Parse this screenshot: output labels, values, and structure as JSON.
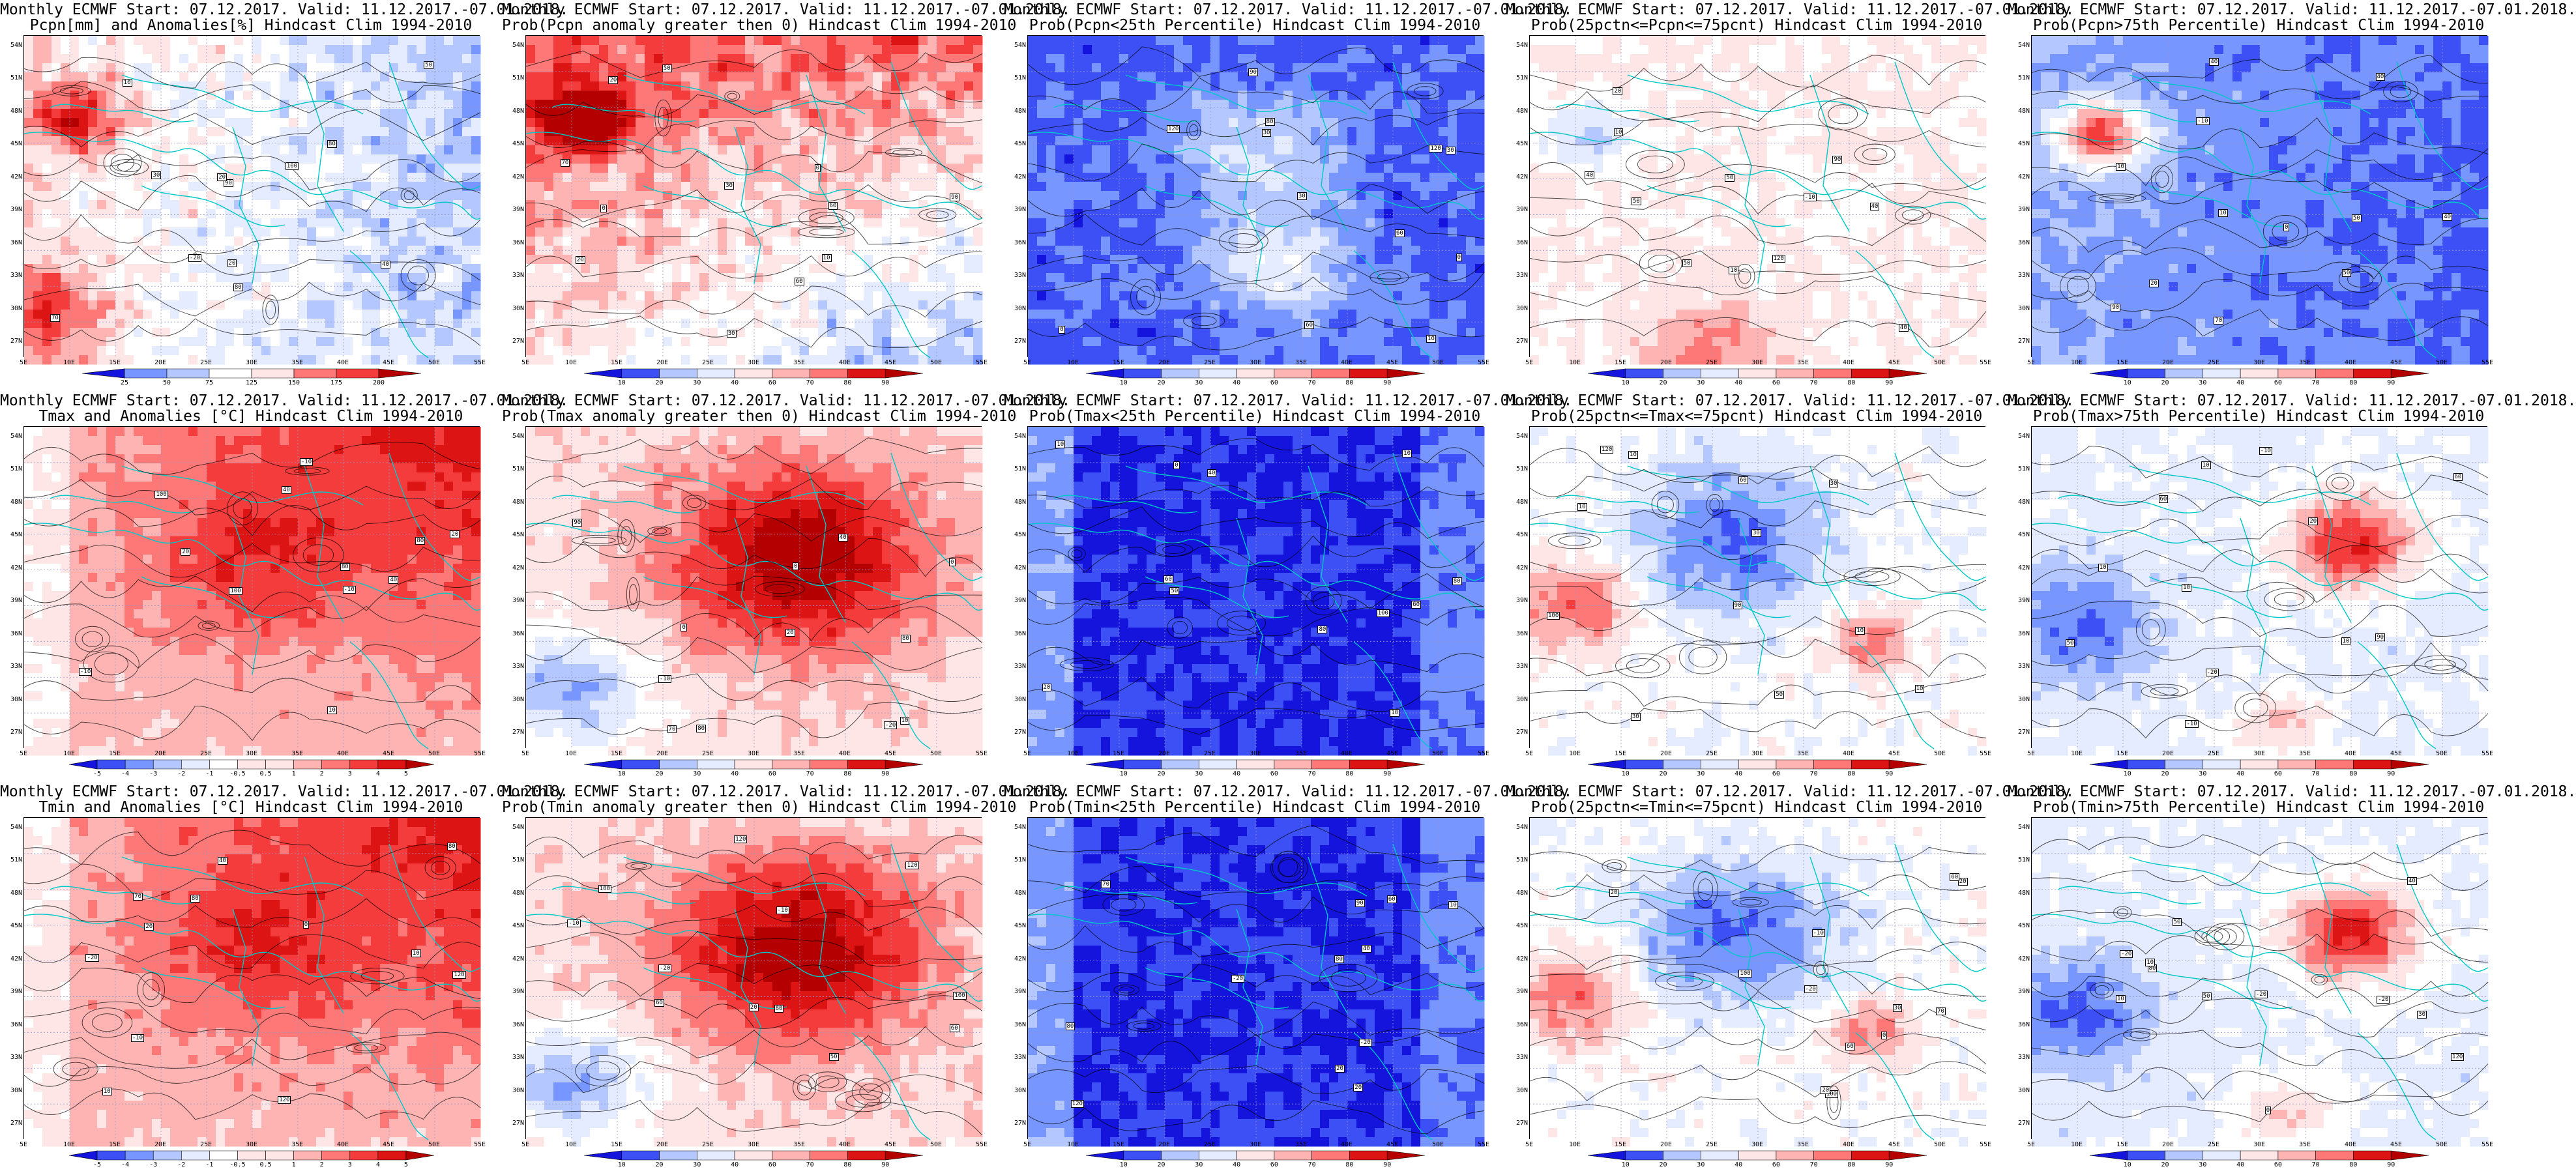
{
  "page": {
    "rows": [
      {
        "var_pcpn": true,
        "panels": [
          {
            "title1": "Monthly ECMWF Start: 07.12.2017. Valid: 11.12.2017.-07.01.2018.",
            "title2": "Pcpn[mm] and Anomalies[%] Hindcast Clim 1994-2010",
            "scheme": "anom_pcpn",
            "colorbar": [
              "25",
              "50",
              "75",
              "125",
              "150",
              "175",
              "200"
            ]
          },
          {
            "title1": "Monthly ECMWF Start: 07.12.2017. Valid: 11.12.2017.-07.01.2018.",
            "title2": "Prob(Pcpn anomaly greater then 0) Hindcast Clim 1994-2010",
            "scheme": "prob_gt0_p",
            "colorbar": [
              "10",
              "20",
              "30",
              "40",
              "60",
              "70",
              "80",
              "90"
            ]
          },
          {
            "title1": "Monthly ECMWF Start: 07.12.2017. Valid: 11.12.2017.-07.01.2018.",
            "title2": "Prob(Pcpn<25th Percentile) Hindcast Clim 1994-2010",
            "scheme": "prob_lt25_p",
            "colorbar": [
              "10",
              "20",
              "30",
              "40",
              "60",
              "70",
              "80",
              "90"
            ]
          },
          {
            "title1": "Monthly ECMWF Start: 07.12.2017. Valid: 11.12.2017.-07.01.2018.",
            "title2": "Prob(25pctn<=Pcpn<=75pcnt) Hindcast Clim 1994-2010",
            "scheme": "prob_mid_p",
            "colorbar": [
              "10",
              "20",
              "30",
              "40",
              "60",
              "70",
              "80",
              "90"
            ]
          },
          {
            "title1": "Monthly ECMWF Start: 07.12.2017. Valid: 11.12.2017.-07.01.2018.",
            "title2": "Prob(Pcpn>75th Percentile) Hindcast Clim 1994-2010",
            "scheme": "prob_gt75_p",
            "colorbar": [
              "10",
              "20",
              "30",
              "40",
              "60",
              "70",
              "80",
              "90"
            ]
          }
        ]
      },
      {
        "panels": [
          {
            "title1": "Monthly ECMWF Start: 07.12.2017. Valid: 11.12.2017.-07.01.2018.",
            "title2": "Tmax and Anomalies [°C] Hindcast Clim 1994-2010",
            "scheme": "anom_t",
            "colorbar": [
              "-5",
              "-4",
              "-3",
              "-2",
              "-1",
              "-0.5",
              "0.5",
              "1",
              "2",
              "3",
              "4",
              "5"
            ]
          },
          {
            "title1": "Monthly ECMWF Start: 07.12.2017. Valid: 11.12.2017.-07.01.2018.",
            "title2": "Prob(Tmax anomaly greater then 0) Hindcast Clim 1994-2010",
            "scheme": "prob_gt0_t",
            "colorbar": [
              "10",
              "20",
              "30",
              "40",
              "60",
              "70",
              "80",
              "90"
            ]
          },
          {
            "title1": "Monthly ECMWF Start: 07.12.2017. Valid: 11.12.2017.-07.01.2018.",
            "title2": "Prob(Tmax<25th Percentile) Hindcast Clim 1994-2010",
            "scheme": "prob_lt25_t",
            "colorbar": [
              "10",
              "20",
              "30",
              "40",
              "60",
              "70",
              "80",
              "90"
            ]
          },
          {
            "title1": "Monthly ECMWF Start: 07.12.2017. Valid: 11.12.2017.-07.01.2018.",
            "title2": "Prob(25pctn<=Tmax<=75pcnt) Hindcast Clim 1994-2010",
            "scheme": "prob_mid_t",
            "colorbar": [
              "10",
              "20",
              "30",
              "40",
              "60",
              "70",
              "80",
              "90"
            ]
          },
          {
            "title1": "Monthly ECMWF Start: 07.12.2017. Valid: 11.12.2017.-07.01.2018.",
            "title2": "Prob(Tmax>75th Percentile) Hindcast Clim 1994-2010",
            "scheme": "prob_gt75_t",
            "colorbar": [
              "10",
              "20",
              "30",
              "40",
              "60",
              "70",
              "80",
              "90"
            ]
          }
        ]
      },
      {
        "panels": [
          {
            "title1": "Monthly ECMWF Start: 07.12.2017. Valid: 11.12.2017.-07.01.2018.",
            "title2": "Tmin and Anomalies [°C] Hindcast Clim 1994-2010",
            "scheme": "anom_t",
            "colorbar": [
              "-5",
              "-4",
              "-3",
              "-2",
              "-1",
              "-0.5",
              "0.5",
              "1",
              "2",
              "3",
              "4",
              "5"
            ]
          },
          {
            "title1": "Monthly ECMWF Start: 07.12.2017. Valid: 11.12.2017.-07.01.2018.",
            "title2": "Prob(Tmin anomaly greater then 0) Hindcast Clim 1994-2010",
            "scheme": "prob_gt0_t",
            "colorbar": [
              "10",
              "20",
              "30",
              "40",
              "60",
              "70",
              "80",
              "90"
            ]
          },
          {
            "title1": "Monthly ECMWF Start: 07.12.2017. Valid: 11.12.2017.-07.01.2018.",
            "title2": "Prob(Tmin<25th Percentile) Hindcast Clim 1994-2010",
            "scheme": "prob_lt25_t",
            "colorbar": [
              "10",
              "20",
              "30",
              "40",
              "60",
              "70",
              "80",
              "90"
            ]
          },
          {
            "title1": "Monthly ECMWF Start: 07.12.2017. Valid: 11.12.2017.-07.01.2018.",
            "title2": "Prob(25pctn<=Tmin<=75pcnt) Hindcast Clim 1994-2010",
            "scheme": "prob_mid_t",
            "colorbar": [
              "10",
              "20",
              "30",
              "40",
              "60",
              "70",
              "80",
              "90"
            ]
          },
          {
            "title1": "Monthly ECMWF Start: 07.12.2017. Valid: 11.12.2017.-07.01.2018.",
            "title2": "Prob(Tmin>75th Percentile) Hindcast Clim 1994-2010",
            "scheme": "prob_gt75_t",
            "colorbar": [
              "10",
              "20",
              "30",
              "40",
              "60",
              "70",
              "80",
              "90"
            ]
          }
        ]
      }
    ]
  },
  "axes": {
    "lat_ticks": [
      "54N",
      "51N",
      "48N",
      "45N",
      "42N",
      "39N",
      "36N",
      "33N",
      "30N",
      "27N"
    ],
    "lon_ticks": [
      "5E",
      "10E",
      "15E",
      "20E",
      "25E",
      "30E",
      "35E",
      "40E",
      "45E",
      "50E",
      "55E"
    ]
  },
  "colors": {
    "blue_to_red": [
      "#1414dc",
      "#3c50f5",
      "#7896ff",
      "#b4c8ff",
      "#e6ecff",
      "#ffffff",
      "#ffe6e6",
      "#ffb4b4",
      "#ff7878",
      "#f53c3c",
      "#dc1414",
      "#b40000"
    ],
    "contour_line": "#000000",
    "coast_line": "#00c8c8",
    "grid_line": "#9696c8"
  },
  "station_labels": [
    "-20",
    "-10",
    "0",
    "10",
    "20",
    "30",
    "40",
    "50",
    "60",
    "70",
    "80",
    "90",
    "100",
    "120"
  ]
}
